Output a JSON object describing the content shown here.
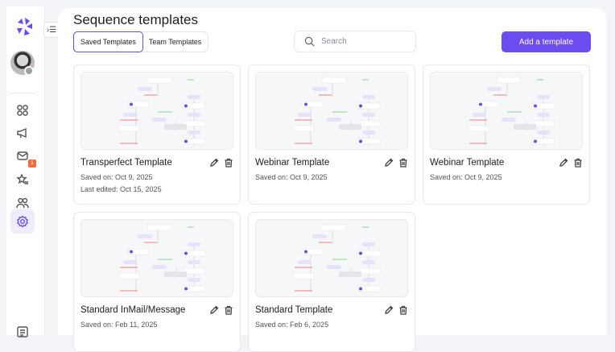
{
  "sidebar": {
    "badge_count": "1",
    "nav": [
      {
        "icon": "dashboard-icon"
      },
      {
        "icon": "megaphone-icon"
      },
      {
        "icon": "mail-icon"
      },
      {
        "icon": "star-list-icon"
      },
      {
        "icon": "users-icon"
      },
      {
        "icon": "settings-icon",
        "active": true
      },
      {
        "icon": "contact-card-icon"
      }
    ]
  },
  "header": {
    "title": "Sequence templates"
  },
  "tabs": [
    {
      "label": "Saved Templates",
      "active": true
    },
    {
      "label": "Team Templates"
    }
  ],
  "search": {
    "placeholder": "Search",
    "value": ""
  },
  "toolbar": {
    "add_label": "Add a template"
  },
  "colors": {
    "accent": "#6c4cf0",
    "badge": "#f26b3a"
  },
  "templates": [
    {
      "name": "Transperfect Template",
      "saved": "Saved on: Oct 9, 2025",
      "edited": "Last edited: Oct 15, 2025"
    },
    {
      "name": "Webinar Template",
      "saved": "Saved on: Oct 9, 2025"
    },
    {
      "name": "Webinar Template",
      "saved": "Saved on: Oct 9, 2025"
    },
    {
      "name": "Standard InMail/Message",
      "saved": "Saved on: Feb 11, 2025"
    },
    {
      "name": "Standard Template",
      "saved": "Saved on: Feb 6, 2025"
    }
  ]
}
